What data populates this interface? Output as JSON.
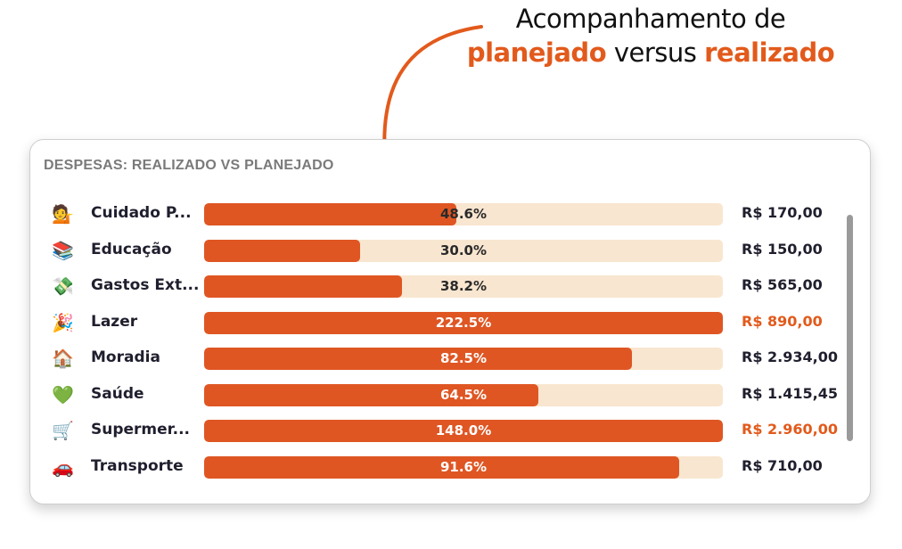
{
  "callout": {
    "line1": "Acompanhamento de",
    "hl1": "planejado",
    "mid": "versus",
    "hl2": "realizado"
  },
  "card": {
    "title": "DESPESAS: REALIZADO VS PLANEJADO"
  },
  "colors": {
    "accent": "#df5623",
    "track": "#f8e6d0",
    "over_budget_text": "#e25a1c"
  },
  "rows": [
    {
      "icon": "person-gesturing-icon",
      "glyph": "💁",
      "category": "Cuidado P...",
      "percent_label": "48.6%",
      "percent": 48.6,
      "amount": "R$ 170,00",
      "over": false
    },
    {
      "icon": "books-icon",
      "glyph": "📚",
      "category": "Educação",
      "percent_label": "30.0%",
      "percent": 30.0,
      "amount": "R$ 150,00",
      "over": false
    },
    {
      "icon": "money-with-wings-icon",
      "glyph": "💸",
      "category": "Gastos Ext...",
      "percent_label": "38.2%",
      "percent": 38.2,
      "amount": "R$ 565,00",
      "over": false
    },
    {
      "icon": "party-popper-icon",
      "glyph": "🎉",
      "category": "Lazer",
      "percent_label": "222.5%",
      "percent": 222.5,
      "amount": "R$ 890,00",
      "over": true
    },
    {
      "icon": "house-icon",
      "glyph": "🏠",
      "category": "Moradia",
      "percent_label": "82.5%",
      "percent": 82.5,
      "amount": "R$ 2.934,00",
      "over": false
    },
    {
      "icon": "green-heart-icon",
      "glyph": "💚",
      "category": "Saúde",
      "percent_label": "64.5%",
      "percent": 64.5,
      "amount": "R$ 1.415,45",
      "over": false
    },
    {
      "icon": "shopping-cart-icon",
      "glyph": "🛒",
      "category": "Supermer...",
      "percent_label": "148.0%",
      "percent": 148.0,
      "amount": "R$ 2.960,00",
      "over": true
    },
    {
      "icon": "car-icon",
      "glyph": "🚗",
      "category": "Transporte",
      "percent_label": "91.6%",
      "percent": 91.6,
      "amount": "R$ 710,00",
      "over": false
    }
  ]
}
